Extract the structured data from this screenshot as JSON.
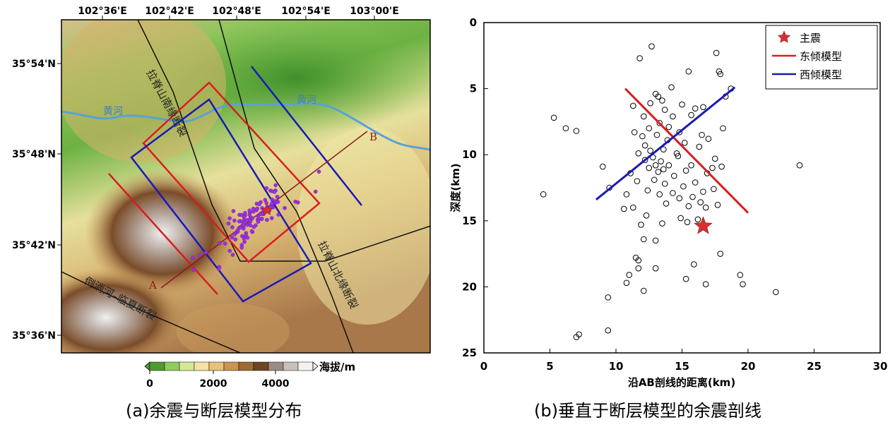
{
  "colors": {
    "east_dip_model": "#d81e1e",
    "west_dip_model": "#1a1ab4",
    "aftershock_fill": "#9b30e0",
    "river": "#5aa0d8",
    "profile_line": "#8b1a1a",
    "star": "#d63030"
  },
  "map": {
    "x_ticks": [
      "102°36'E",
      "102°42'E",
      "102°48'E",
      "102°54'E",
      "103°00'E"
    ],
    "y_ticks": [
      "35°54'N",
      "35°48'N",
      "35°42'N",
      "35°36'N"
    ],
    "fault_labels": [
      "拉脊山南缘断裂",
      "拉脊山北缘断裂",
      "倒淌河–临夏断裂"
    ],
    "river_labels": [
      "黄河",
      "黄河"
    ],
    "profile_start": "A",
    "profile_end": "B",
    "colorbar": {
      "ticks": [
        "0",
        "2000",
        "4000"
      ],
      "unit": "海拔/m",
      "colors": [
        "#4f9a32",
        "#8fcd5c",
        "#d7e79a",
        "#f3e3a6",
        "#e8c27c",
        "#c99652",
        "#9d6a36",
        "#6e4626",
        "#9c8b82",
        "#c9c0bb",
        "#f2f2f2"
      ]
    },
    "caption": "(a)余震与断层模型分布"
  },
  "chart_data": {
    "type": "scatter",
    "title": "",
    "xlabel": "沿AB剖线的距离(km)",
    "ylabel": "深度(km)",
    "xlim": [
      0,
      30
    ],
    "ylim": [
      25,
      0
    ],
    "y_inverted": true,
    "x_ticks": [
      0,
      5,
      10,
      15,
      20,
      25,
      30
    ],
    "y_ticks": [
      0,
      5,
      10,
      15,
      20,
      25
    ],
    "grid": false,
    "legend_position": "top-right",
    "legend": [
      "主震",
      "东倾模型",
      "西倾模型"
    ],
    "mainshock": {
      "x": 16.6,
      "y": 15.4
    },
    "series": [
      {
        "name": "东倾模型",
        "x": [
          10.7,
          20.0
        ],
        "y": [
          5.0,
          14.4
        ]
      },
      {
        "name": "西倾模型",
        "x": [
          8.5,
          19.0
        ],
        "y": [
          13.4,
          4.9
        ]
      }
    ],
    "aftershocks": [
      [
        12.7,
        1.8
      ],
      [
        17.6,
        2.3
      ],
      [
        11.8,
        2.7
      ],
      [
        17.8,
        3.7
      ],
      [
        17.9,
        3.9
      ],
      [
        15.5,
        3.7
      ],
      [
        14.2,
        4.9
      ],
      [
        18.7,
        5.0
      ],
      [
        13.0,
        5.4
      ],
      [
        13.2,
        5.6
      ],
      [
        18.3,
        5.6
      ],
      [
        13.5,
        5.9
      ],
      [
        12.6,
        6.1
      ],
      [
        15.0,
        6.2
      ],
      [
        11.3,
        6.3
      ],
      [
        13.7,
        6.6
      ],
      [
        16.0,
        6.5
      ],
      [
        16.6,
        6.4
      ],
      [
        5.3,
        7.2
      ],
      [
        6.2,
        8.0
      ],
      [
        7.0,
        8.2
      ],
      [
        12.1,
        7.1
      ],
      [
        14.3,
        7.1
      ],
      [
        15.7,
        7.0
      ],
      [
        9.0,
        10.9
      ],
      [
        9.5,
        12.5
      ],
      [
        4.5,
        13.0
      ],
      [
        10.8,
        13.0
      ],
      [
        11.3,
        14.0
      ],
      [
        10.6,
        14.1
      ],
      [
        12.5,
        8.0
      ],
      [
        13.1,
        8.5
      ],
      [
        13.9,
        8.9
      ],
      [
        12.2,
        9.3
      ],
      [
        13.6,
        9.6
      ],
      [
        14.6,
        9.9
      ],
      [
        12.8,
        10.2
      ],
      [
        13.4,
        10.5
      ],
      [
        14.0,
        10.8
      ],
      [
        12.5,
        11.0
      ],
      [
        13.2,
        11.3
      ],
      [
        14.4,
        11.6
      ],
      [
        12.9,
        11.9
      ],
      [
        13.7,
        12.2
      ],
      [
        15.1,
        12.4
      ],
      [
        12.4,
        12.7
      ],
      [
        13.3,
        13.0
      ],
      [
        14.8,
        13.3
      ],
      [
        13.8,
        13.7
      ],
      [
        15.5,
        13.9
      ],
      [
        16.4,
        13.6
      ],
      [
        17.4,
        12.6
      ],
      [
        16.9,
        11.4
      ],
      [
        17.5,
        10.3
      ],
      [
        16.3,
        9.4
      ],
      [
        17.0,
        8.8
      ],
      [
        18.1,
        8.0
      ],
      [
        15.7,
        10.8
      ],
      [
        16.0,
        12.1
      ],
      [
        14.9,
        14.8
      ],
      [
        13.5,
        15.2
      ],
      [
        12.3,
        14.6
      ],
      [
        11.9,
        15.3
      ],
      [
        15.4,
        15.1
      ],
      [
        16.2,
        14.9
      ],
      [
        16.8,
        14.0
      ],
      [
        11.6,
        12.0
      ],
      [
        11.1,
        11.4
      ],
      [
        11.7,
        9.9
      ],
      [
        12.0,
        8.6
      ],
      [
        14.8,
        8.3
      ],
      [
        15.2,
        9.1
      ],
      [
        13.3,
        7.6
      ],
      [
        14.0,
        7.9
      ],
      [
        12.6,
        9.7
      ],
      [
        13.0,
        10.8
      ],
      [
        14.3,
        12.9
      ],
      [
        15.8,
        13.2
      ],
      [
        17.7,
        13.8
      ],
      [
        16.6,
        12.8
      ],
      [
        13.6,
        11.1
      ],
      [
        12.2,
        10.4
      ],
      [
        15.3,
        11.2
      ],
      [
        14.7,
        10.1
      ],
      [
        17.3,
        11.0
      ],
      [
        18.0,
        10.9
      ],
      [
        11.4,
        8.3
      ],
      [
        16.5,
        8.5
      ],
      [
        12.1,
        16.4
      ],
      [
        13.0,
        16.5
      ],
      [
        11.5,
        17.8
      ],
      [
        11.7,
        18.0
      ],
      [
        13.0,
        18.6
      ],
      [
        11.7,
        18.6
      ],
      [
        15.9,
        18.3
      ],
      [
        17.9,
        17.5
      ],
      [
        11.0,
        19.1
      ],
      [
        10.8,
        19.7
      ],
      [
        15.3,
        19.4
      ],
      [
        12.1,
        20.3
      ],
      [
        16.8,
        19.8
      ],
      [
        19.4,
        19.1
      ],
      [
        19.6,
        19.8
      ],
      [
        22.1,
        20.4
      ],
      [
        23.9,
        10.8
      ],
      [
        9.4,
        20.8
      ],
      [
        9.4,
        23.3
      ],
      [
        7.2,
        23.6
      ],
      [
        7.0,
        23.8
      ]
    ],
    "caption": "(b)垂直于断层模型的余震剖线"
  }
}
